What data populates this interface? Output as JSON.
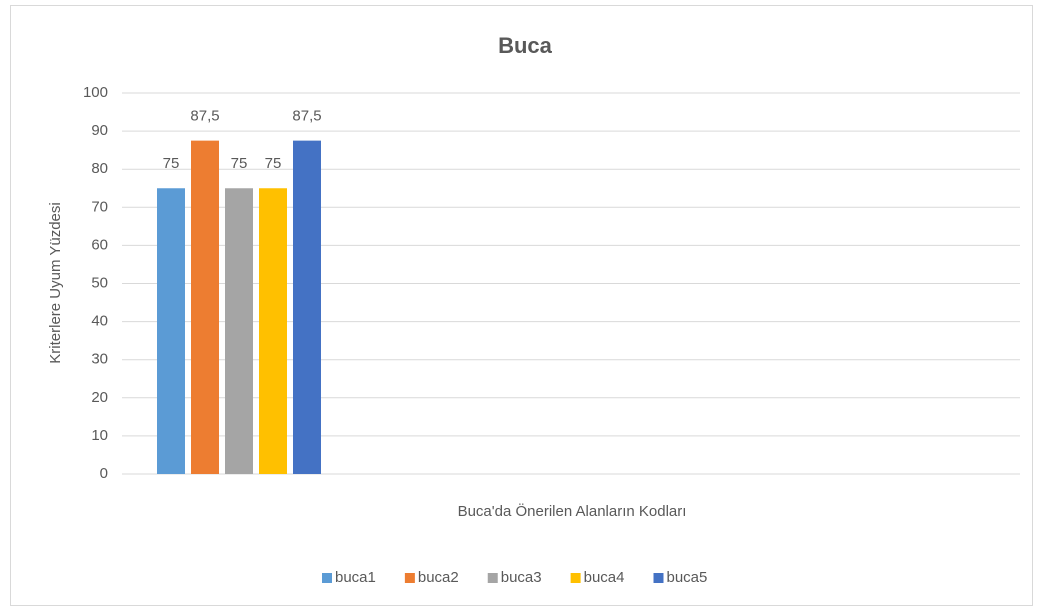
{
  "chart_data": {
    "type": "bar",
    "title": "Buca",
    "x_label": "Buca'da Önerilen Alanların Kodları",
    "y_label": "Kriterlere Uyum Yüzdesi",
    "categories": [
      null
    ],
    "series": [
      {
        "name": "buca1",
        "color": "#5b9bd5",
        "values": [
          75
        ],
        "value_labels": [
          "75"
        ]
      },
      {
        "name": "buca2",
        "color": "#ed7d31",
        "values": [
          87.5
        ],
        "value_labels": [
          "87,5"
        ]
      },
      {
        "name": "buca3",
        "color": "#a5a5a5",
        "values": [
          75
        ],
        "value_labels": [
          "75"
        ]
      },
      {
        "name": "buca4",
        "color": "#ffc000",
        "values": [
          75
        ],
        "value_labels": [
          "75"
        ]
      },
      {
        "name": "buca5",
        "color": "#4472c4",
        "values": [
          87.5
        ],
        "value_labels": [
          "87,5"
        ]
      }
    ],
    "ylim": [
      0,
      100
    ],
    "yticks": [
      0,
      10,
      20,
      30,
      40,
      50,
      60,
      70,
      80,
      90,
      100
    ],
    "grid": true,
    "legend": "bottom"
  }
}
